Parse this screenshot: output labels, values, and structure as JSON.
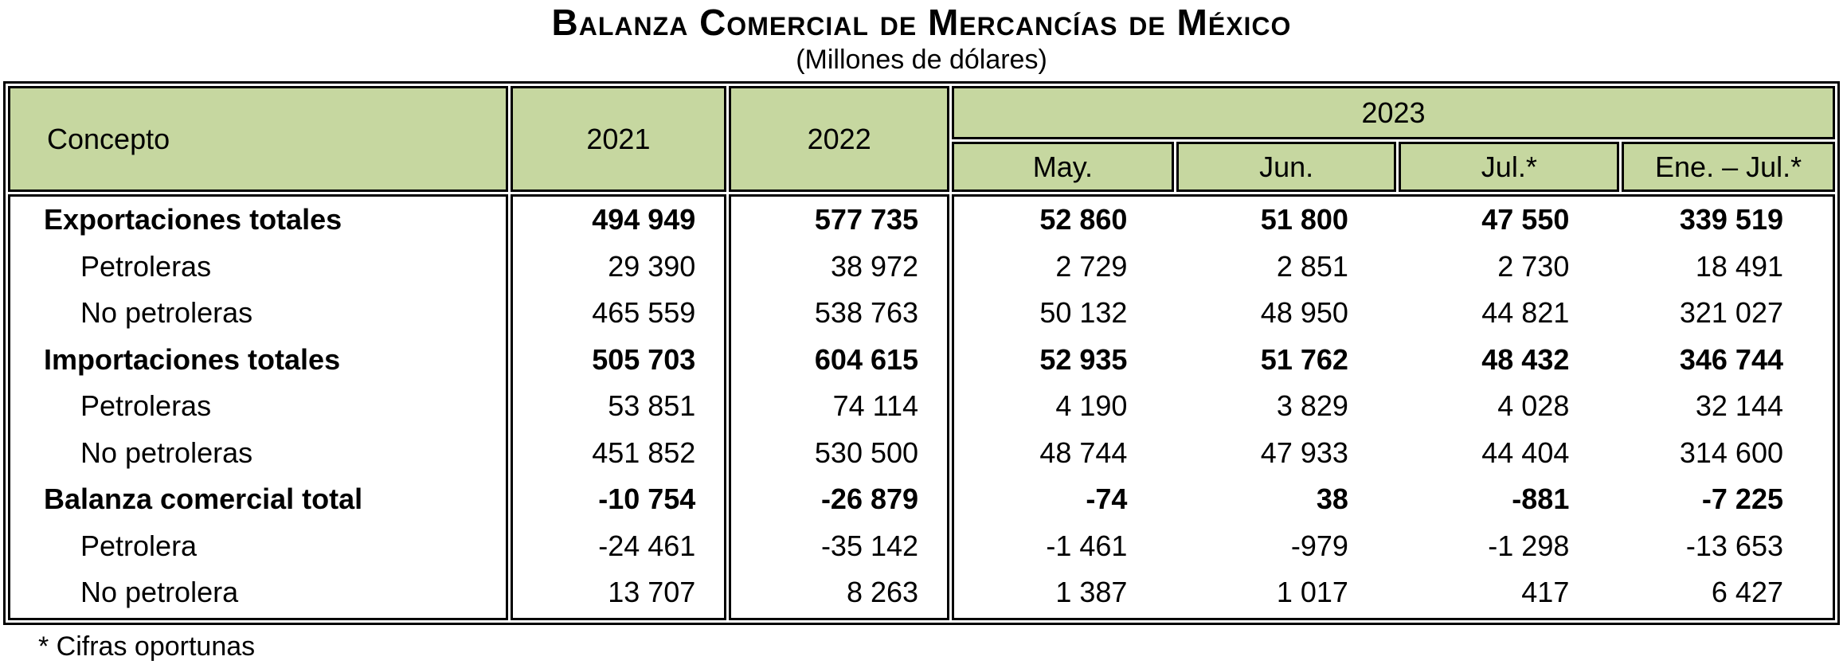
{
  "page": {
    "title": "Balanza Comercial de Mercancías de México",
    "subtitle": "(Millones de dólares)",
    "footnote": "* Cifras oportunas"
  },
  "colors": {
    "header_background": "#c6d7a0",
    "border": "#000000",
    "text": "#000000"
  },
  "table": {
    "col_headers": {
      "concept": "Concepto",
      "y2021": "2021",
      "y2022": "2022",
      "group2023": "2023",
      "months": [
        "May.",
        "Jun.",
        "Jul.*",
        "Ene. – Jul.*"
      ]
    },
    "rows": [
      {
        "label": "Exportaciones totales",
        "values": [
          "494 949",
          "577 735",
          "52 860",
          "51 800",
          "47 550",
          "339 519"
        ]
      },
      {
        "label": "Petroleras",
        "values": [
          "29 390",
          "38 972",
          "2 729",
          "2 851",
          "2 730",
          "18 491"
        ]
      },
      {
        "label": "No petroleras",
        "values": [
          "465 559",
          "538 763",
          "50 132",
          "48 950",
          "44 821",
          "321 027"
        ]
      },
      {
        "label": "Importaciones totales",
        "values": [
          "505 703",
          "604 615",
          "52 935",
          "51 762",
          "48 432",
          "346 744"
        ]
      },
      {
        "label": "Petroleras",
        "values": [
          "53 851",
          "74 114",
          "4 190",
          "3 829",
          "4 028",
          "32 144"
        ]
      },
      {
        "label": "No petroleras",
        "values": [
          "451 852",
          "530 500",
          "48 744",
          "47 933",
          "44 404",
          "314 600"
        ]
      },
      {
        "label": "Balanza comercial total",
        "values": [
          "-10 754",
          "-26 879",
          "-74",
          "38",
          "-881",
          "-7 225"
        ]
      },
      {
        "label": "Petrolera",
        "values": [
          "-24 461",
          "-35 142",
          "-1 461",
          "-979",
          "-1 298",
          "-13 653"
        ]
      },
      {
        "label": "No petrolera",
        "values": [
          "13 707",
          "8 263",
          "1 387",
          "1 017",
          "417",
          "6 427"
        ]
      }
    ]
  }
}
